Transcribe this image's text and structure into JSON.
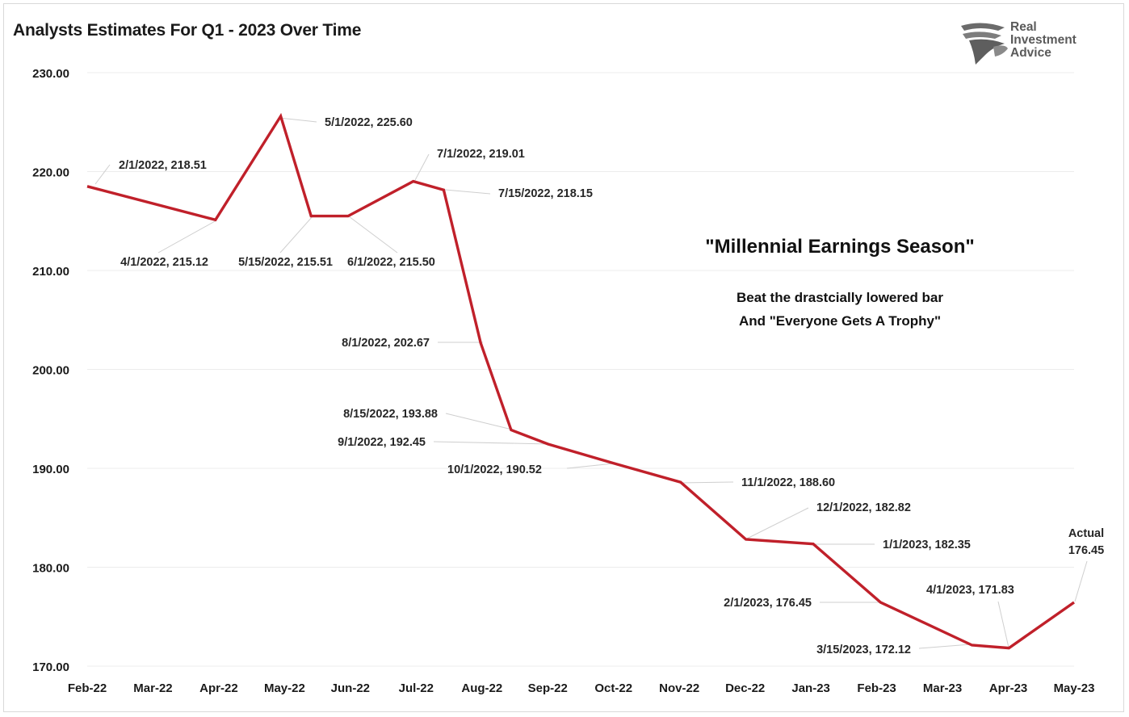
{
  "title": "Analysts Estimates For Q1 - 2023 Over Time",
  "logo": {
    "line1": "Real",
    "line2": "Investment",
    "line3": "Advice",
    "icon": "eagle-head-icon"
  },
  "annotation": {
    "headline": "\"Millennial Earnings Season\"",
    "line1": "Beat the drastcially lowered bar",
    "line2": "And \"Everyone Gets A Trophy\""
  },
  "chart_data": {
    "type": "line",
    "title": "Analysts Estimates For Q1 - 2023 Over Time",
    "xlabel": "",
    "ylabel": "",
    "ylim": [
      170,
      230
    ],
    "yticks": [
      "230.00",
      "220.00",
      "210.00",
      "200.00",
      "190.00",
      "180.00",
      "170.00"
    ],
    "xticks": [
      "Feb-22",
      "Mar-22",
      "Apr-22",
      "May-22",
      "Jun-22",
      "Jul-22",
      "Aug-22",
      "Sep-22",
      "Oct-22",
      "Nov-22",
      "Dec-22",
      "Jan-23",
      "Feb-23",
      "Mar-23",
      "Apr-23",
      "May-23"
    ],
    "grid": "horizontal",
    "line_color": "#c0202a",
    "series": [
      {
        "points": [
          {
            "date": "2022-02-01",
            "value": 218.51,
            "label": "2/1/2022,  218.51"
          },
          {
            "date": "2022-04-01",
            "value": 215.12,
            "label": "4/1/2022,  215.12"
          },
          {
            "date": "2022-05-01",
            "value": 225.6,
            "label": "5/1/2022,  225.60"
          },
          {
            "date": "2022-05-15",
            "value": 215.51,
            "label": "5/15/2022,  215.51"
          },
          {
            "date": "2022-06-01",
            "value": 215.5,
            "label": "6/1/2022,  215.50"
          },
          {
            "date": "2022-07-01",
            "value": 219.01,
            "label": "7/1/2022,  219.01"
          },
          {
            "date": "2022-07-15",
            "value": 218.15,
            "label": "7/15/2022,  218.15"
          },
          {
            "date": "2022-08-01",
            "value": 202.67,
            "label": "8/1/2022,  202.67"
          },
          {
            "date": "2022-08-15",
            "value": 193.88,
            "label": "8/15/2022,  193.88"
          },
          {
            "date": "2022-09-01",
            "value": 192.45,
            "label": "9/1/2022,  192.45"
          },
          {
            "date": "2022-10-01",
            "value": 190.52,
            "label": "10/1/2022,  190.52"
          },
          {
            "date": "2022-11-01",
            "value": 188.6,
            "label": "11/1/2022,  188.60"
          },
          {
            "date": "2022-12-01",
            "value": 182.82,
            "label": "12/1/2022,  182.82"
          },
          {
            "date": "2023-01-01",
            "value": 182.35,
            "label": "1/1/2023,  182.35"
          },
          {
            "date": "2023-02-01",
            "value": 176.45,
            "label": "2/1/2023,  176.45"
          },
          {
            "date": "2023-03-15",
            "value": 172.12,
            "label": "3/15/2023,  172.12"
          },
          {
            "date": "2023-04-01",
            "value": 171.83,
            "label": "4/1/2023,  171.83"
          },
          {
            "date": "2023-05-01",
            "value": 176.45,
            "label": "Actual|176.45"
          }
        ]
      }
    ]
  }
}
